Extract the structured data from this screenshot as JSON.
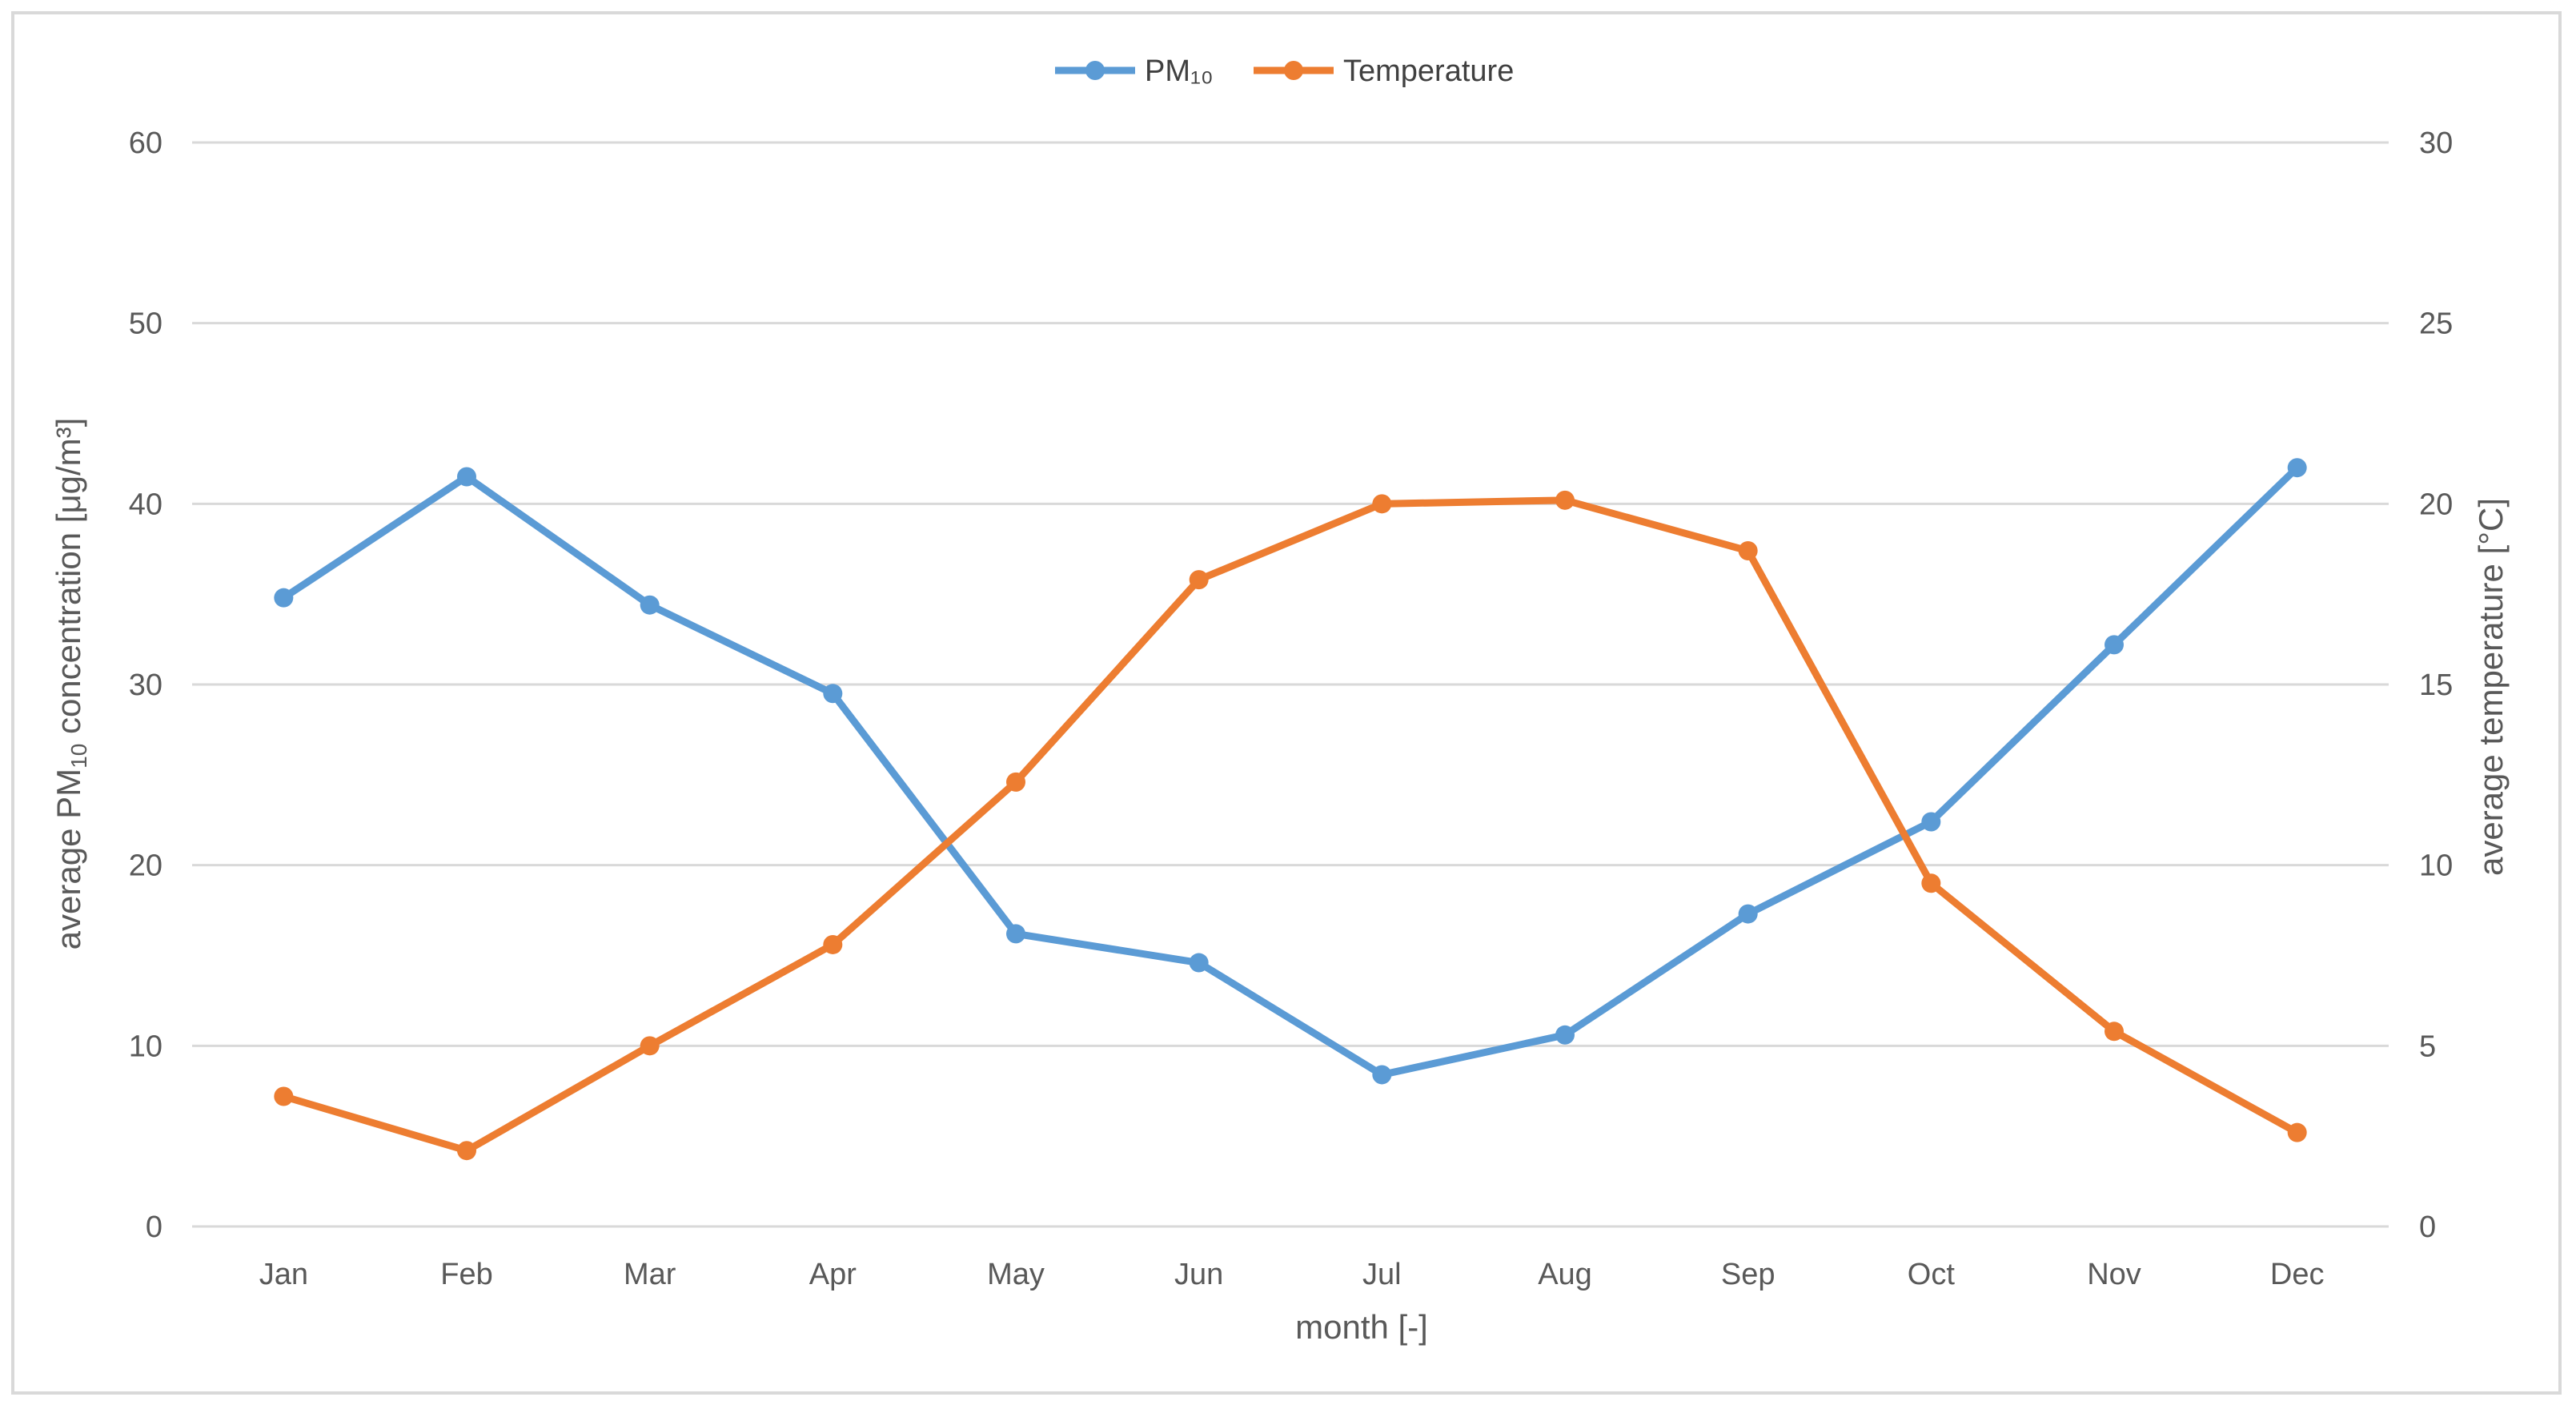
{
  "chart_data": {
    "type": "line",
    "categories": [
      "Jan",
      "Feb",
      "Mar",
      "Apr",
      "May",
      "Jun",
      "Jul",
      "Aug",
      "Sep",
      "Oct",
      "Nov",
      "Dec"
    ],
    "series": [
      {
        "name": "PM₁₀",
        "axis": "left",
        "color": "#5B9BD5",
        "values": [
          34.8,
          41.5,
          34.4,
          29.5,
          16.2,
          14.6,
          8.4,
          10.6,
          17.3,
          22.4,
          32.2,
          42.0
        ]
      },
      {
        "name": "Temperature",
        "axis": "right",
        "color": "#ED7D31",
        "values": [
          3.6,
          2.1,
          5.0,
          7.8,
          12.3,
          17.9,
          20.0,
          20.1,
          18.7,
          9.5,
          5.4,
          2.6
        ]
      }
    ],
    "xlabel": "month [-]",
    "ylabel_left": {
      "pre": "average PM",
      "sub": "10",
      "post": " concentration [μg/m³]"
    },
    "ylabel_right": "average temperature [°C]",
    "ylim_left": [
      0,
      60
    ],
    "ylim_right": [
      0,
      30
    ],
    "yticks_left": [
      0,
      10,
      20,
      30,
      40,
      50,
      60
    ],
    "yticks_right": [
      0,
      5,
      10,
      15,
      20,
      25,
      30
    ],
    "grid": true,
    "legend": "top-center",
    "gridline_color": "#d9d9d9"
  }
}
